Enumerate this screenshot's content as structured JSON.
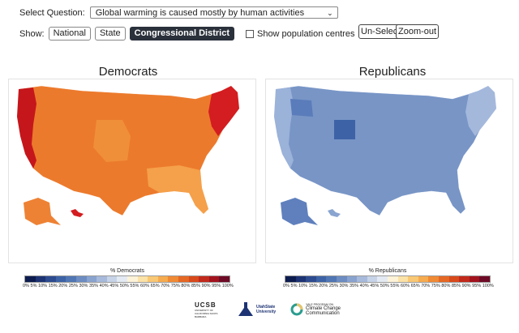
{
  "question": {
    "label": "Select Question:",
    "value": "Global warming is caused mostly by human activities"
  },
  "show": {
    "label": "Show:",
    "buttons": [
      "National",
      "State",
      "Congressional District"
    ],
    "active": 2,
    "population_label": "Show population centres"
  },
  "controls": {
    "unselect": "Un-Select",
    "zoomout": "Zoom-out"
  },
  "panels": [
    {
      "title": "Democrats",
      "legend_title": "% Democrats"
    },
    {
      "title": "Republicans",
      "legend_title": "% Republicans"
    }
  ],
  "legend": {
    "ticks": [
      "0%",
      "5%",
      "10%",
      "15%",
      "20%",
      "25%",
      "30%",
      "35%",
      "40%",
      "45%",
      "50%",
      "55%",
      "60%",
      "65%",
      "70%",
      "75%",
      "80%",
      "85%",
      "90%",
      "95%",
      "100%"
    ],
    "colors": [
      "#0d1c4f",
      "#1d3373",
      "#2d4b8f",
      "#3d62a6",
      "#5076b4",
      "#6c8cc2",
      "#89a3cf",
      "#a7badb",
      "#c7d3e7",
      "#e4eaf3",
      "#fdf3d8",
      "#fbe2a6",
      "#f9c874",
      "#f6ab4f",
      "#f08a35",
      "#e56824",
      "#d84a1c",
      "#c22a1b",
      "#a2131e",
      "#6e0b26"
    ]
  },
  "logos": {
    "ucsb": "UCSB",
    "ucsb_sub": "UNIVERSITY OF CALIFORNIA SANTA BARBARA",
    "usu": "UtahState University",
    "yale_small": "YALE PROGRAM ON",
    "yale": "Climate Change Communication"
  }
}
